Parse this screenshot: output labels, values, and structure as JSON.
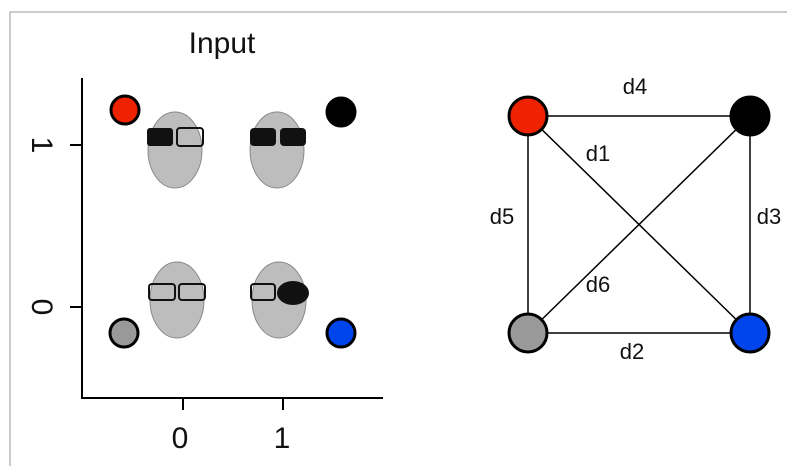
{
  "left_panel": {
    "title": "Input",
    "y_tick_labels": [
      "1",
      "0"
    ],
    "x_tick_labels": [
      "0",
      "1"
    ]
  },
  "right_panel": {
    "edge_labels": [
      "d4",
      "d1",
      "d5",
      "d3",
      "d6",
      "d2"
    ]
  }
}
